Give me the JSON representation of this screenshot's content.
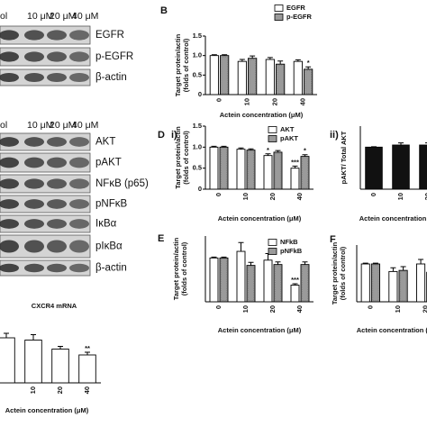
{
  "blots": [
    {
      "header": [
        "ol",
        "10 μM",
        "20 μM",
        "40 μM"
      ],
      "rows": [
        "EGFR",
        "p-EGFR",
        "β-actin"
      ]
    },
    {
      "header": [
        "ol",
        "10 μM",
        "20 μM",
        "40 μM"
      ],
      "rows": [
        "AKT",
        "pAKT",
        "NFκB (p65)",
        "pNFκB",
        "IκBα",
        "pIκBα",
        "β-actin"
      ]
    }
  ],
  "chart_data": [
    {
      "type": "bar",
      "panel": "B",
      "ylabel": [
        "Target protein/actin",
        "(folds of control)"
      ],
      "xlabel": "Actein concentration (μM)",
      "categories": [
        "0",
        "10",
        "20",
        "40"
      ],
      "series": [
        {
          "name": "EGFR",
          "color": "#ffffff",
          "values": [
            1.0,
            0.85,
            0.9,
            0.85
          ],
          "errors": [
            0.02,
            0.05,
            0.05,
            0.04
          ],
          "significance": [
            null,
            null,
            null,
            null
          ]
        },
        {
          "name": "p-EGFR",
          "color": "#9a9a9a",
          "values": [
            1.0,
            0.93,
            0.78,
            0.65
          ],
          "errors": [
            0.02,
            0.06,
            0.08,
            0.06
          ],
          "significance": [
            null,
            null,
            null,
            "*"
          ]
        }
      ],
      "ylim": [
        0,
        1.5
      ],
      "yticks": [
        0,
        0.5,
        {
          "value": 1,
          "label": "1.0"
        },
        1.5
      ]
    },
    {
      "type": "bar",
      "panel": "D",
      "subpanel": "i)",
      "ylabel": [
        "Target protein/actin",
        "(folds of control)"
      ],
      "xlabel": "Actein concentration (μM)",
      "categories": [
        "0",
        "10",
        "20",
        "40"
      ],
      "series": [
        {
          "name": "AKT",
          "color": "#ffffff",
          "values": [
            1.0,
            0.95,
            0.8,
            0.5
          ],
          "errors": [
            0.02,
            0.03,
            0.04,
            0.05
          ],
          "significance": [
            null,
            null,
            "*",
            "***"
          ]
        },
        {
          "name": "pAKT",
          "color": "#9a9a9a",
          "values": [
            1.0,
            0.93,
            0.88,
            0.78
          ],
          "errors": [
            0.02,
            0.03,
            0.04,
            0.04
          ],
          "significance": [
            null,
            null,
            null,
            "*"
          ]
        }
      ],
      "ylim": [
        0,
        1.5
      ],
      "yticks": [
        0,
        0.5,
        {
          "value": 1,
          "label": "1.0"
        },
        1.5
      ]
    },
    {
      "type": "bar",
      "subpanel": "ii)",
      "ylabel": [
        "pAKT/ Total AKT"
      ],
      "xlabel": "Actein concentration (μM)",
      "categories": [
        "0",
        "10",
        "20"
      ],
      "series": [
        {
          "color": "#111111",
          "values": [
            1.0,
            1.05,
            1.05
          ],
          "errors": [
            0.01,
            0.05,
            0.05
          ],
          "significance": [
            null,
            null,
            null
          ]
        }
      ],
      "ylim": [
        0,
        1.5
      ]
    },
    {
      "type": "bar",
      "panel": "E",
      "ylabel": [
        "Target protein/actin",
        "(folds of control)"
      ],
      "xlabel": "Actein concentration (μM)",
      "categories": [
        "0",
        "10",
        "20",
        "40"
      ],
      "series": [
        {
          "name": "NFkB",
          "color": "#ffffff",
          "values": [
            1.0,
            1.15,
            0.95,
            0.38
          ],
          "errors": [
            0.02,
            0.2,
            0.15,
            0.03
          ],
          "significance": [
            null,
            null,
            null,
            "***"
          ]
        },
        {
          "name": "pNFkB",
          "color": "#9a9a9a",
          "values": [
            1.0,
            0.83,
            0.85,
            0.85
          ],
          "errors": [
            0.02,
            0.07,
            0.06,
            0.06
          ],
          "significance": [
            null,
            null,
            null,
            null
          ]
        }
      ],
      "ylim": [
        0,
        1.5
      ]
    },
    {
      "type": "bar",
      "panel": "F",
      "ylabel": [
        "Target protein/actin",
        "(folds of control)"
      ],
      "xlabel": "Actein concentration (μM)",
      "categories": [
        "0",
        "10",
        "20"
      ],
      "series": [
        {
          "color": "#ffffff",
          "values": [
            1.0,
            0.8,
            1.0
          ],
          "errors": [
            0.02,
            0.1,
            0.12
          ],
          "significance": [
            null,
            null,
            null
          ]
        },
        {
          "color": "#9a9a9a",
          "values": [
            1.0,
            0.83,
            0.78
          ],
          "errors": [
            0.02,
            0.1,
            0.08
          ],
          "significance": [
            null,
            null,
            null
          ]
        }
      ],
      "ylim": [
        0,
        1.5
      ]
    },
    {
      "type": "bar",
      "title": "CXCR4 mRNA",
      "xlabel": "Actein concentration (μM)",
      "categories": [
        null,
        "10",
        "20",
        "40"
      ],
      "series": [
        {
          "color": "#ffffff",
          "values": [
            1.0,
            0.95,
            0.75,
            0.62
          ],
          "errors": [
            0.1,
            0.12,
            0.06,
            0.06
          ],
          "significance": [
            null,
            null,
            null,
            "**"
          ]
        }
      ],
      "ylim": [
        0,
        1.5
      ]
    }
  ]
}
